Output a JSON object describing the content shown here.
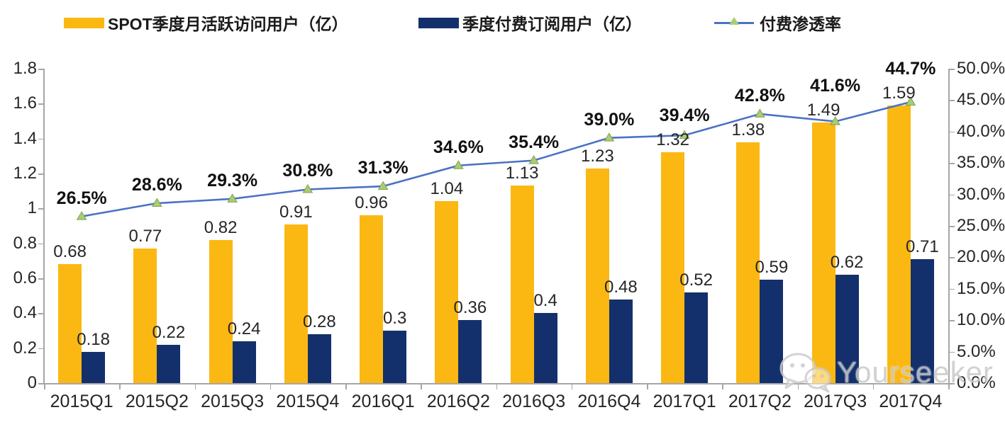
{
  "chart_data": {
    "type": "bar",
    "subtype": "grouped-bars-with-line-combo",
    "categories": [
      "2015Q1",
      "2015Q2",
      "2015Q3",
      "2015Q4",
      "2016Q1",
      "2016Q2",
      "2016Q3",
      "2016Q4",
      "2017Q1",
      "2017Q2",
      "2017Q3",
      "2017Q4"
    ],
    "series": [
      {
        "name": "SPOT季度月活跃访问用户（亿）",
        "type": "bar",
        "axis": "left",
        "color": "#FBB812",
        "values": [
          0.68,
          0.77,
          0.82,
          0.91,
          0.96,
          1.04,
          1.13,
          1.23,
          1.32,
          1.38,
          1.49,
          1.59
        ],
        "labels": [
          "0.68",
          "0.77",
          "0.82",
          "0.91",
          "0.96",
          "1.04",
          "1.13",
          "1.23",
          "1.32",
          "1.38",
          "1.49",
          "1.59"
        ]
      },
      {
        "name": "季度付费订阅用户（亿）",
        "type": "bar",
        "axis": "left",
        "color": "#14306C",
        "values": [
          0.18,
          0.22,
          0.24,
          0.28,
          0.3,
          0.36,
          0.4,
          0.48,
          0.52,
          0.59,
          0.62,
          0.71
        ],
        "labels": [
          "0.18",
          "0.22",
          "0.24",
          "0.28",
          "0.3",
          "0.36",
          "0.4",
          "0.48",
          "0.52",
          "0.59",
          "0.62",
          "0.71"
        ]
      },
      {
        "name": "付费渗透率",
        "type": "line",
        "axis": "right",
        "color": "#4A72C4",
        "marker": "triangle-up",
        "marker_color": "#A9CC74",
        "marker_edge_color": "#7FA24C",
        "values": [
          26.5,
          28.6,
          29.3,
          30.8,
          31.3,
          34.6,
          35.4,
          39.0,
          39.4,
          42.8,
          41.6,
          44.7
        ],
        "labels": [
          "26.5%",
          "28.6%",
          "29.3%",
          "30.8%",
          "31.3%",
          "34.6%",
          "35.4%",
          "39.0%",
          "39.4%",
          "42.8%",
          "41.6%",
          "44.7%"
        ]
      }
    ],
    "left_axis": {
      "ticks": [
        "0",
        "0.2",
        "0.4",
        "0.6",
        "0.8",
        "1",
        "1.2",
        "1.4",
        "1.6",
        "1.8"
      ],
      "lim": [
        0,
        1.8
      ]
    },
    "right_axis": {
      "ticks": [
        "0.0%",
        "5.0%",
        "10.0%",
        "15.0%",
        "20.0%",
        "25.0%",
        "30.0%",
        "35.0%",
        "40.0%",
        "45.0%",
        "50.0%"
      ],
      "lim": [
        0,
        50
      ]
    },
    "title": "",
    "xlabel": "",
    "ylabel": "",
    "legend_position": "top",
    "grid": false,
    "axis_color": "#A6A6A6"
  },
  "watermark": {
    "text": "Yourseeker"
  }
}
